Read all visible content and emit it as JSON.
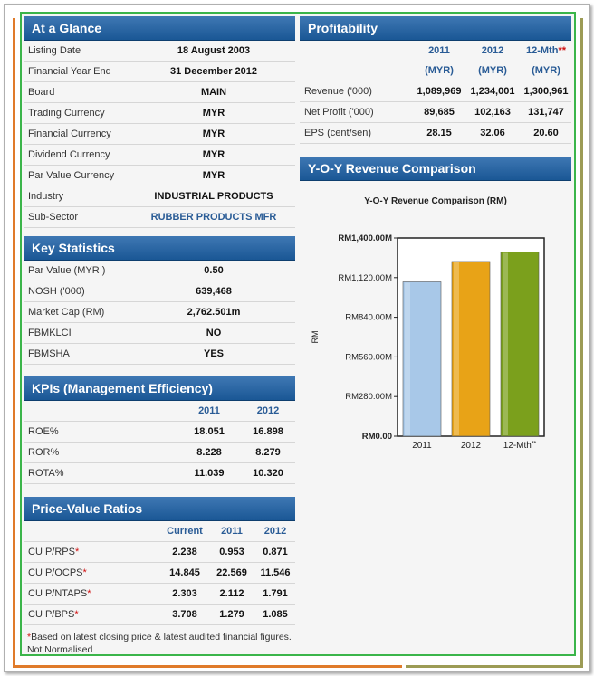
{
  "at_a_glance": {
    "title": "At a Glance",
    "rows": [
      {
        "label": "Listing Date",
        "value": "18 August 2003"
      },
      {
        "label": "Financial Year End",
        "value": "31 December 2012"
      },
      {
        "label": "Board",
        "value": "MAIN"
      },
      {
        "label": "Trading Currency",
        "value": "MYR"
      },
      {
        "label": "Financial Currency",
        "value": "MYR"
      },
      {
        "label": "Dividend Currency",
        "value": "MYR"
      },
      {
        "label": "Par Value Currency",
        "value": "MYR"
      },
      {
        "label": "Industry",
        "value": "INDUSTRIAL PRODUCTS"
      },
      {
        "label": "Sub-Sector",
        "value": "RUBBER PRODUCTS MFR"
      }
    ]
  },
  "key_statistics": {
    "title": "Key Statistics",
    "rows": [
      {
        "label": "Par Value (MYR )",
        "value": "0.50"
      },
      {
        "label": "NOSH ('000)",
        "value": "639,468"
      },
      {
        "label": "Market Cap (RM)",
        "value": "2,762.501m"
      },
      {
        "label": "FBMKLCI",
        "value": "NO"
      },
      {
        "label": "FBMSHA",
        "value": "YES"
      }
    ]
  },
  "kpis": {
    "title": "KPIs (Management Efficiency)",
    "columns": [
      "2011",
      "2012"
    ],
    "rows": [
      {
        "label": "ROE%",
        "values": [
          "18.051",
          "16.898"
        ]
      },
      {
        "label": "ROR%",
        "values": [
          "8.228",
          "8.279"
        ]
      },
      {
        "label": "ROTA%",
        "values": [
          "11.039",
          "10.320"
        ]
      }
    ]
  },
  "price_value": {
    "title": "Price-Value Ratios",
    "columns": [
      "Current",
      "2011",
      "2012"
    ],
    "rows": [
      {
        "label": "CU P/RPS",
        "star": "*",
        "values": [
          "2.238",
          "0.953",
          "0.871"
        ]
      },
      {
        "label": "CU P/OCPS",
        "star": "*",
        "values": [
          "14.845",
          "22.569",
          "11.546"
        ]
      },
      {
        "label": "CU P/NTAPS",
        "star": "*",
        "values": [
          "2.303",
          "2.112",
          "1.791"
        ]
      },
      {
        "label": "CU P/BPS",
        "star": "*",
        "values": [
          "3.708",
          "1.279",
          "1.085"
        ]
      }
    ],
    "footnote_star": "*",
    "footnote": "Based on latest closing price & latest audited financial figures. Not Normalised"
  },
  "profitability": {
    "title": "Profitability",
    "columns": [
      {
        "year": "2011",
        "unit": "(MYR)",
        "star": ""
      },
      {
        "year": "2012",
        "unit": "(MYR)",
        "star": ""
      },
      {
        "year": "12-Mth",
        "unit": "(MYR)",
        "star": "**"
      }
    ],
    "rows": [
      {
        "label": "Revenue ('000)",
        "values": [
          "1,089,969",
          "1,234,001",
          "1,300,961"
        ]
      },
      {
        "label": "Net Profit ('000)",
        "values": [
          "89,685",
          "102,163",
          "131,747"
        ]
      },
      {
        "label": "EPS (cent/sen)",
        "values": [
          "28.15",
          "32.06",
          "20.60"
        ]
      }
    ]
  },
  "revenue_chart_panel": {
    "title": "Y-O-Y Revenue Comparison"
  },
  "chart_data": {
    "type": "bar",
    "title": "Y-O-Y Revenue Comparison (RM)",
    "ylabel": "RM",
    "xlabel": "",
    "categories": [
      "2011",
      "2012",
      "12-Mth"
    ],
    "category_stars": [
      "",
      "",
      "**"
    ],
    "values": [
      1089969000,
      1234001000,
      1300961000
    ],
    "colors": [
      "#a8c8e8",
      "#e8a317",
      "#7ba01c"
    ],
    "ylim": [
      0,
      1400000000
    ],
    "yticks": [
      {
        "value": 0,
        "label": "RM0.00"
      },
      {
        "value": 280000000,
        "label": "RM280.00M"
      },
      {
        "value": 560000000,
        "label": "RM560.00M"
      },
      {
        "value": 840000000,
        "label": "RM840.00M"
      },
      {
        "value": 1120000000,
        "label": "RM1,120.00M"
      },
      {
        "value": 1400000000,
        "label": "RM1,400.00M"
      }
    ],
    "grid": false,
    "legend": "none"
  }
}
